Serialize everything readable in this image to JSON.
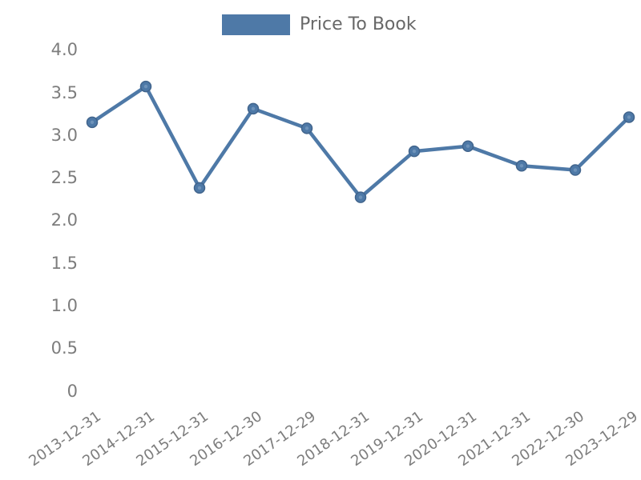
{
  "legend": {
    "label": "Price To Book",
    "swatch_color": "#4e79a7"
  },
  "colors": {
    "line": "#4e79a7",
    "marker_fill": "#4e79a7",
    "marker_edge": "#41648c",
    "marker_highlight": "#6e93ba",
    "axis_text": "#7d7d7d",
    "legend_text": "#686868",
    "background": "#ffffff"
  },
  "chart_data": {
    "type": "line",
    "title": "",
    "xlabel": "",
    "ylabel": "",
    "series": [
      {
        "name": "Price To Book",
        "values": [
          3.15,
          3.57,
          2.38,
          3.31,
          3.08,
          2.27,
          2.81,
          2.87,
          2.64,
          2.59,
          3.21
        ]
      }
    ],
    "categories": [
      "2013-12-31",
      "2014-12-31",
      "2015-12-31",
      "2016-12-30",
      "2017-12-29",
      "2018-12-31",
      "2019-12-31",
      "2020-12-31",
      "2021-12-31",
      "2022-12-30",
      "2023-12-29"
    ],
    "y_tick_labels": [
      "4.0",
      "3.5",
      "3.0",
      "2.5",
      "2.0",
      "1.5",
      "1.0",
      "0.5",
      "0"
    ],
    "ylim": [
      0,
      4.0
    ],
    "grid": false,
    "axis_lines": false,
    "legend_position": "top-center",
    "x_label_rotation_deg": -35
  }
}
